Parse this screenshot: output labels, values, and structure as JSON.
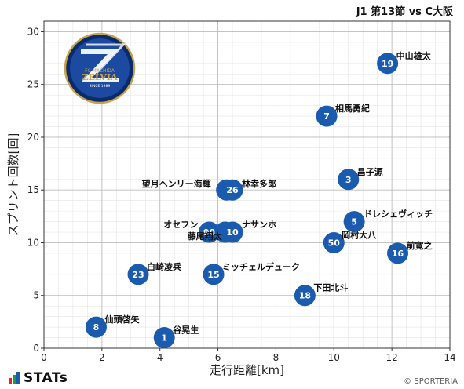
{
  "title": "J1 第13節 vs C大阪",
  "footer": {
    "brand": "STATs",
    "credit": "© SPORTERIA"
  },
  "logo": {
    "text_main": "ZELVIA",
    "text_top": "FC MACHIDA",
    "text_bottom": "SINCE 1989",
    "colors": {
      "navy": "#0b2a6b",
      "ring": "#1b4aa0",
      "gold": "#c8a24a"
    }
  },
  "colors": {
    "point": "#1a5bb0",
    "grid_major": "#bdbdbd",
    "grid_minor": "#e4e4e4"
  },
  "chart_data": {
    "type": "scatter",
    "xlabel": "走行距離[km]",
    "ylabel": "スプリント回数[回]",
    "xlim": [
      0,
      14
    ],
    "ylim": [
      0,
      31
    ],
    "xticks": [
      0,
      2,
      4,
      6,
      8,
      10,
      12,
      14
    ],
    "yticks": [
      0,
      5,
      10,
      15,
      20,
      25,
      30
    ],
    "grid": true,
    "points": [
      {
        "number": "19",
        "name": "中山雄太",
        "x": 11.85,
        "y": 27
      },
      {
        "number": "7",
        "name": "相馬勇紀",
        "x": 9.75,
        "y": 22
      },
      {
        "number": "3",
        "name": "昌子源",
        "x": 10.5,
        "y": 16
      },
      {
        "number": "6",
        "name": "望月ヘンリー海輝",
        "x": 6.3,
        "y": 15
      },
      {
        "number": "26",
        "name": "林幸多郎",
        "x": 6.5,
        "y": 15
      },
      {
        "number": "5",
        "name": "ドレシェヴィッチ",
        "x": 10.7,
        "y": 12
      },
      {
        "number": "90",
        "name": "オセフン",
        "x": 5.7,
        "y": 11
      },
      {
        "number": "9",
        "name": "藤尾翔太",
        "x": 6.25,
        "y": 11
      },
      {
        "number": "10",
        "name": "ナサンホ",
        "x": 6.5,
        "y": 11
      },
      {
        "number": "50",
        "name": "岡村大八",
        "x": 10.0,
        "y": 10
      },
      {
        "number": "16",
        "name": "前寛之",
        "x": 12.2,
        "y": 9
      },
      {
        "number": "23",
        "name": "白崎凌兵",
        "x": 3.25,
        "y": 7
      },
      {
        "number": "15",
        "name": "ミッチェルデューク",
        "x": 5.85,
        "y": 7
      },
      {
        "number": "18",
        "name": "下田北斗",
        "x": 9.0,
        "y": 5
      },
      {
        "number": "8",
        "name": "仙頭啓矢",
        "x": 1.8,
        "y": 2
      },
      {
        "number": "1",
        "name": "谷晃生",
        "x": 4.15,
        "y": 1
      }
    ]
  }
}
